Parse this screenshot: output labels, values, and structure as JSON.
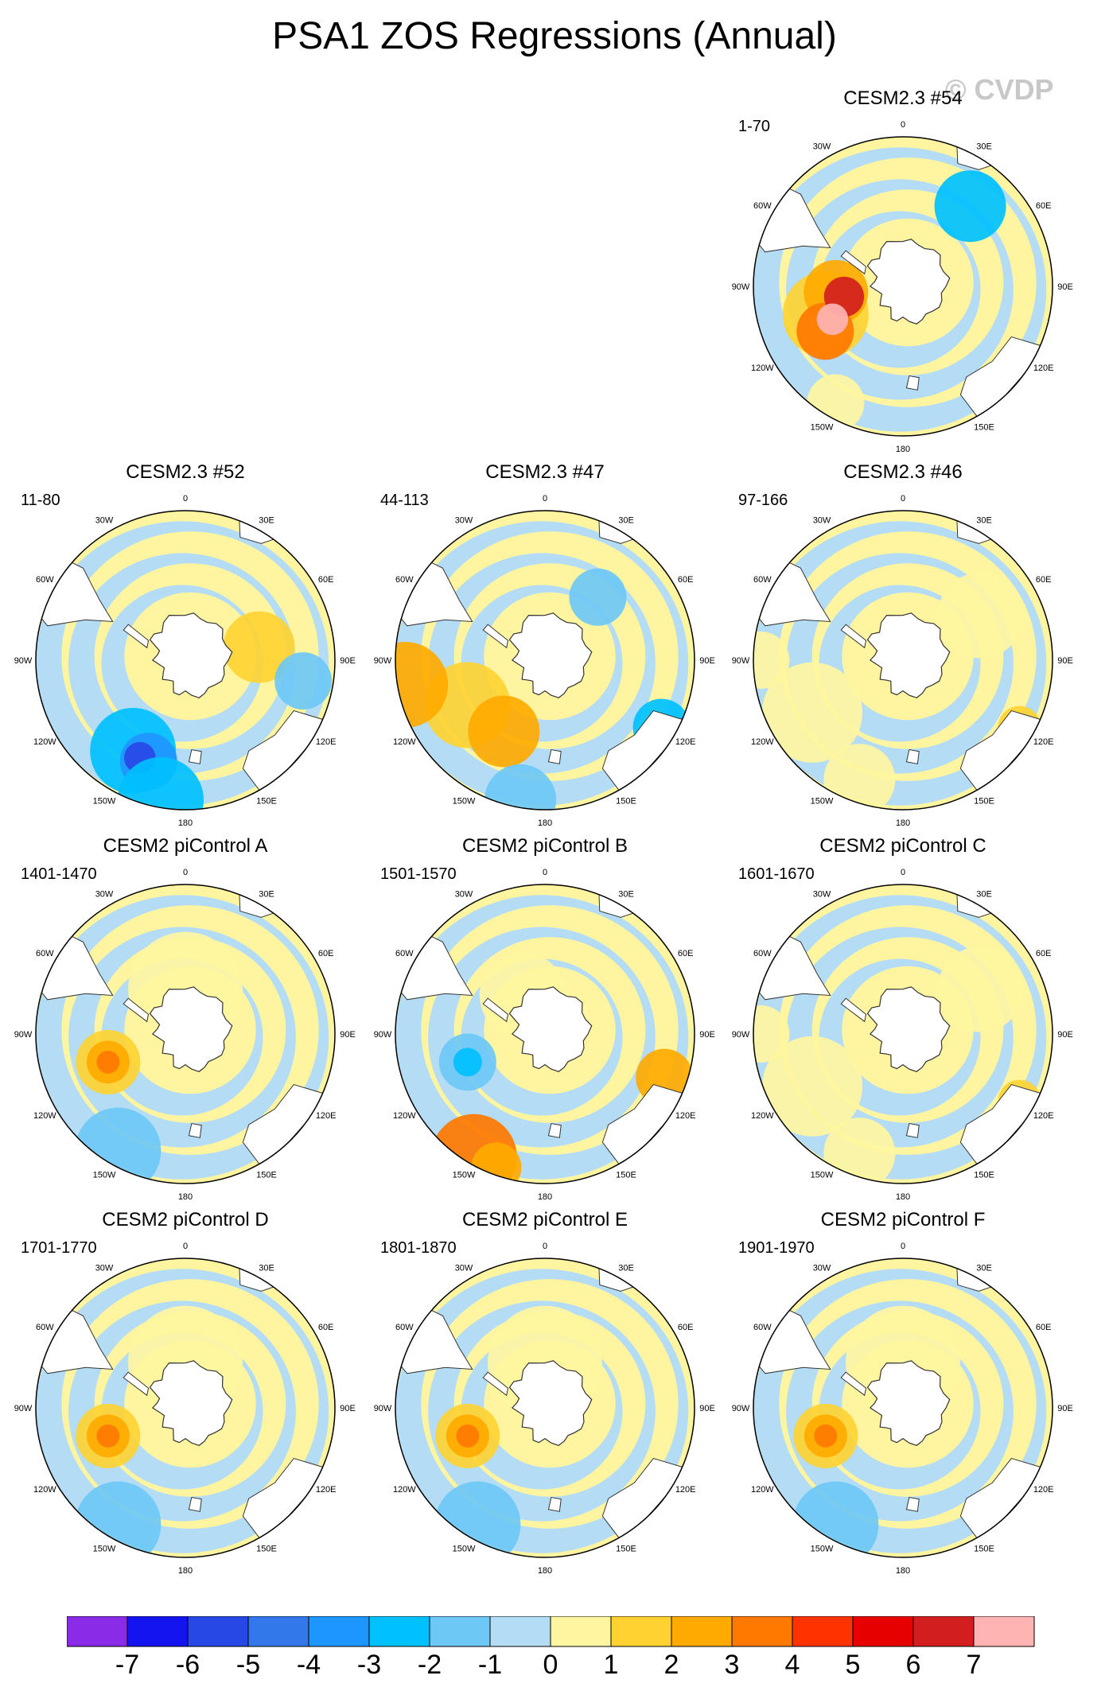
{
  "page": {
    "title": "PSA1 ZOS Regressions (Annual)",
    "watermark": "© CVDP"
  },
  "map": {
    "lon_labels": [
      "0",
      "30E",
      "60E",
      "90E",
      "120E",
      "150E",
      "180",
      "150W",
      "120W",
      "90W",
      "60W",
      "30W"
    ]
  },
  "chart_data": {
    "type": "polar-map-panels",
    "title": "PSA1 ZOS Regressions (Annual)",
    "projection": "south polar stereographic",
    "colorbar": {
      "ticks": [
        "-7",
        "-6",
        "-5",
        "-4",
        "-3",
        "-2",
        "-1",
        "0",
        "1",
        "2",
        "3",
        "4",
        "5",
        "6",
        "7"
      ],
      "colors": [
        "#8a2be8",
        "#1414f0",
        "#2848e6",
        "#3278ea",
        "#1e96ff",
        "#00c0ff",
        "#6ec8f5",
        "#b4dcf5",
        "#fff5a0",
        "#ffd232",
        "#ffaa00",
        "#ff7800",
        "#ff3200",
        "#e60000",
        "#d21e1e",
        "#ffb4b4"
      ]
    },
    "panels": [
      {
        "title": "CESM2.3 #54",
        "years": "1-70",
        "palette": "warm-strong"
      },
      {
        "title": "CESM2.3 #52",
        "years": "11-80",
        "palette": "cool"
      },
      {
        "title": "CESM2.3 #47",
        "years": "44-113",
        "palette": "mixed"
      },
      {
        "title": "CESM2.3 #46",
        "years": "97-166",
        "palette": "weak"
      },
      {
        "title": "CESM2 piControl A",
        "years": "1401-1470",
        "palette": "warm"
      },
      {
        "title": "CESM2 piControl B",
        "years": "1501-1570",
        "palette": "cool-b"
      },
      {
        "title": "CESM2 piControl C",
        "years": "1601-1670",
        "palette": "weak"
      },
      {
        "title": "CESM2 piControl D",
        "years": "1701-1770",
        "palette": "warm"
      },
      {
        "title": "CESM2 piControl E",
        "years": "1801-1870",
        "palette": "warm"
      },
      {
        "title": "CESM2 piControl F",
        "years": "1901-1970",
        "palette": "warm"
      }
    ]
  }
}
